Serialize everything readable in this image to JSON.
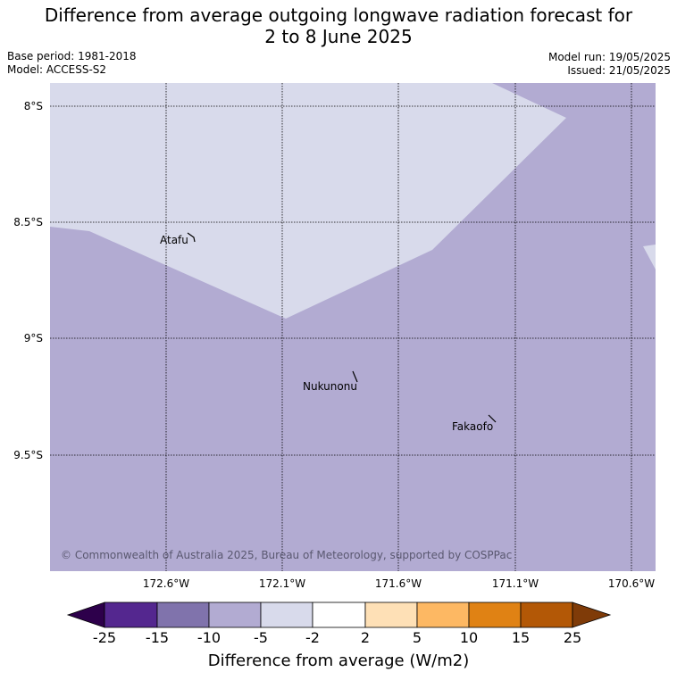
{
  "title_line1": "Difference from average outgoing longwave radiation forecast for",
  "title_line2": "2 to 8 June 2025",
  "meta": {
    "base_period": "Base period: 1981-2018",
    "model": "Model: ACCESS-S2",
    "model_run": "Model run: 19/05/2025",
    "issued": "Issued: 21/05/2025"
  },
  "lat_labels": [
    "8°S",
    "8.5°S",
    "9°S",
    "9.5°S"
  ],
  "lon_labels": [
    "172.6°W",
    "172.1°W",
    "171.6°W",
    "171.1°W",
    "170.6°W"
  ],
  "places": [
    "Atafu",
    "Nukunonu",
    "Fakaofo"
  ],
  "copyright": "© Commonwealth of Australia 2025, Bureau of Meteorology, supported by COSPPac",
  "colorbar": {
    "ticks": [
      "-25",
      "-15",
      "-10",
      "-5",
      "-2",
      "2",
      "5",
      "10",
      "15",
      "25"
    ],
    "colors": [
      "#2d004b",
      "#54278f",
      "#8073ac",
      "#b2abd2",
      "#d8daeb",
      "#ffffff",
      "#fee0b6",
      "#fdb863",
      "#e08214",
      "#b35806",
      "#7f3b08"
    ],
    "label": "Difference from average (W/m2)"
  },
  "map_colors": {
    "minus_10_to_5": "#b2abd2",
    "minus_5_to_2": "#d8daeb"
  }
}
